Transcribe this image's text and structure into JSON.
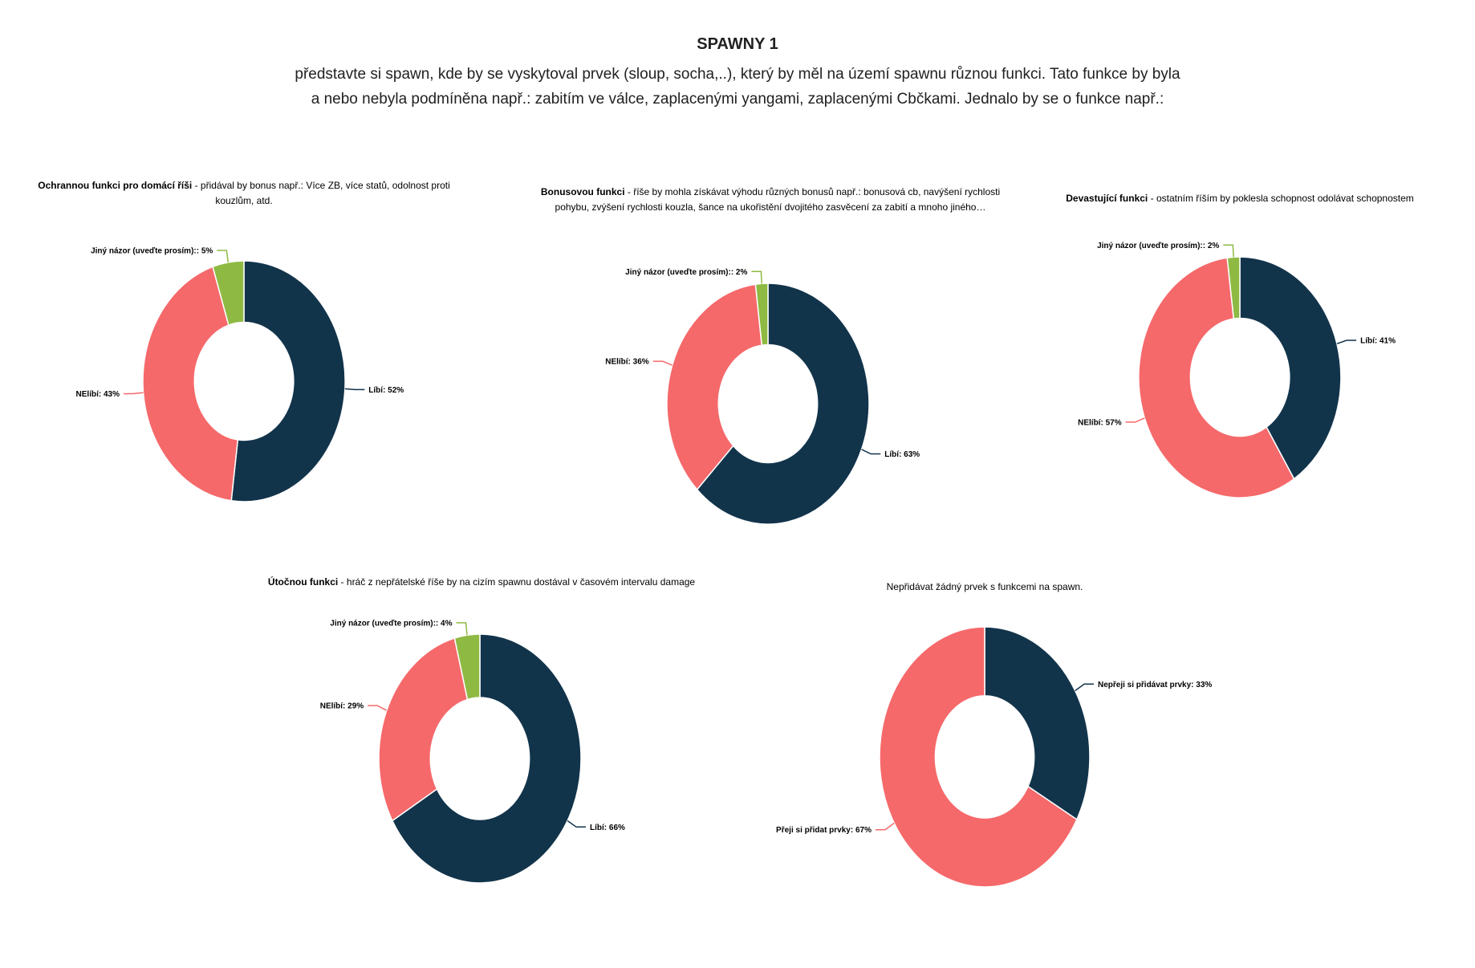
{
  "page": {
    "title": "SPAWNY 1",
    "subtitle_line1": "představte si spawn, kde by se vyskytoval prvek (sloup, socha,..), který by měl na území spawnu různou funkci. Tato funkce by byla",
    "subtitle_line2": "a nebo nebyla podmíněna např.: zabitím ve válce, zaplacenými yangami, zaplacenými Cbčkami. Jednalo by se o funkce např.:"
  },
  "colors": {
    "libi_navy": "#12344B",
    "nelibi_salmon": "#F5696B",
    "jiny_green": "#8EBA43"
  },
  "chart_data": [
    {
      "type": "pie",
      "variant": "donut",
      "title_bold": "Ochrannou funkci pro domácí říši",
      "title_rest": " - přidával by bonus např.: Více ZB, více statů, odolnost proti kouzlům, atd.",
      "legend": "none",
      "slices": [
        {
          "label": "Líbí",
          "value": 52,
          "display": "Líbí: 52%",
          "color": "#12344B"
        },
        {
          "label": "NElíbí",
          "value": 43,
          "display": "NElíbí: 43%",
          "color": "#F5696B"
        },
        {
          "label": "Jiný názor (uveďte prosím):",
          "value": 5,
          "display": "Jiný názor (uveďte prosím):: 5%",
          "color": "#8EBA43"
        }
      ]
    },
    {
      "type": "pie",
      "variant": "donut",
      "title_bold": "Bonusovou funkci",
      "title_rest": " - říše by mohla získávat výhodu různých bonusů např.: bonusová cb, navýšení rychlosti pohybu, zvýšení rychlosti kouzla, šance na ukořistění dvojitého zasvěcení za zabití a mnoho jiného…",
      "legend": "none",
      "slices": [
        {
          "label": "Líbí",
          "value": 63,
          "display": "Líbí: 63%",
          "color": "#12344B"
        },
        {
          "label": "NElíbí",
          "value": 36,
          "display": "NElíbí: 36%",
          "color": "#F5696B"
        },
        {
          "label": "Jiný názor (uveďte prosím):",
          "value": 2,
          "display": "Jiný názor (uveďte prosím):: 2%",
          "color": "#8EBA43"
        }
      ]
    },
    {
      "type": "pie",
      "variant": "donut",
      "title_bold": "Devastující funkci",
      "title_rest": " - ostatním říším by poklesla schopnost odolávat schopnostem",
      "legend": "none",
      "slices": [
        {
          "label": "Líbí",
          "value": 41,
          "display": "Líbí: 41%",
          "color": "#12344B"
        },
        {
          "label": "NElíbí",
          "value": 57,
          "display": "NElíbí: 57%",
          "color": "#F5696B"
        },
        {
          "label": "Jiný názor (uveďte prosím):",
          "value": 2,
          "display": "Jiný názor (uveďte prosím):: 2%",
          "color": "#8EBA43"
        }
      ]
    },
    {
      "type": "pie",
      "variant": "donut",
      "title_bold": "Útočnou funkci",
      "title_rest": " - hráč z nepřátelské říše by na cizím spawnu dostával v časovém intervalu damage",
      "legend": "none",
      "slices": [
        {
          "label": "Líbí",
          "value": 66,
          "display": "Líbí: 66%",
          "color": "#12344B"
        },
        {
          "label": "NElíbí",
          "value": 29,
          "display": "NElíbí: 29%",
          "color": "#F5696B"
        },
        {
          "label": "Jiný názor (uveďte prosím):",
          "value": 4,
          "display": "Jiný názor (uveďte prosím):: 4%",
          "color": "#8EBA43"
        }
      ]
    },
    {
      "type": "pie",
      "variant": "donut",
      "title_bold": "",
      "title_rest": "Nepřidávat žádný prvek s funkcemi na spawn.",
      "legend": "none",
      "slices": [
        {
          "label": "Nepřeji si přidávat prvky",
          "value": 33,
          "display": "Nepřeji si přidávat prvky: 33%",
          "color": "#12344B"
        },
        {
          "label": "Přeji si přidat prvky",
          "value": 67,
          "display": "Přeji si přidat prvky: 67%",
          "color": "#F5696B"
        }
      ]
    }
  ]
}
